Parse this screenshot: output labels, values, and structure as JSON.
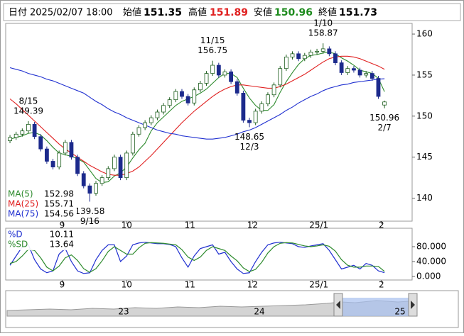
{
  "header": {
    "date_label": "日付",
    "date": "2025/02/07 18:00",
    "open_label": "始値",
    "open": "151.35",
    "high_label": "高値",
    "high": "151.89",
    "low_label": "安値",
    "low": "150.96",
    "close_label": "終値",
    "close": "151.73"
  },
  "navigator": {
    "labels": [
      "23",
      "24",
      "25"
    ]
  },
  "chart_data": [
    {
      "type": "candlestick",
      "categories": [
        null,
        null,
        null,
        "8/15",
        null,
        null,
        null,
        null,
        null,
        null,
        null,
        null,
        null,
        "9/16",
        null,
        null,
        null,
        null,
        null,
        null,
        null,
        null,
        null,
        null,
        null,
        null,
        null,
        null,
        null,
        null,
        null,
        null,
        null,
        "11/15",
        null,
        null,
        null,
        null,
        null,
        "12/3",
        null,
        null,
        null,
        null,
        null,
        null,
        null,
        null,
        null,
        null,
        null,
        "1/10",
        null,
        null,
        null,
        null,
        null,
        null,
        null,
        null,
        null,
        "2/7"
      ],
      "open": [
        147.0,
        147.4,
        147.8,
        148.2,
        149.0,
        147.5,
        146.0,
        144.5,
        143.8,
        145.5,
        146.8,
        145.0,
        143.0,
        141.5,
        140.6,
        141.8,
        142.5,
        143.6,
        145.0,
        142.5,
        145.5,
        147.8,
        148.6,
        149.2,
        149.8,
        150.5,
        151.3,
        152.0,
        153.0,
        152.4,
        151.6,
        153.2,
        154.0,
        155.2,
        156.2,
        155.0,
        155.4,
        154.2,
        152.8,
        149.5,
        149.2,
        150.6,
        151.5,
        152.6,
        153.8,
        155.8,
        157.2,
        157.6,
        157.0,
        157.4,
        157.8,
        157.9,
        158.2,
        157.6,
        156.5,
        155.3,
        155.8,
        155.6,
        155.0,
        155.2,
        154.6,
        151.35
      ],
      "high": [
        147.7,
        148.1,
        148.5,
        149.39,
        149.3,
        147.8,
        146.3,
        144.8,
        145.8,
        147.1,
        147.1,
        145.3,
        143.3,
        141.8,
        142.1,
        142.8,
        143.9,
        145.3,
        145.3,
        145.8,
        148.1,
        148.9,
        149.5,
        150.1,
        150.8,
        151.6,
        152.3,
        153.3,
        153.3,
        152.7,
        153.5,
        154.3,
        155.5,
        156.75,
        156.5,
        155.7,
        155.7,
        154.5,
        153.1,
        149.8,
        150.9,
        151.8,
        152.9,
        154.1,
        156.1,
        157.5,
        157.9,
        157.9,
        157.7,
        158.1,
        158.2,
        158.87,
        158.5,
        157.9,
        156.8,
        156.1,
        156.1,
        155.9,
        155.5,
        155.5,
        154.9,
        151.89
      ],
      "low": [
        146.7,
        147.1,
        147.5,
        147.9,
        147.2,
        145.7,
        144.2,
        143.5,
        143.5,
        145.2,
        144.7,
        142.7,
        141.2,
        139.58,
        140.3,
        141.5,
        142.2,
        143.3,
        142.2,
        142.2,
        145.2,
        147.5,
        148.3,
        148.9,
        149.5,
        150.2,
        151.0,
        151.7,
        152.1,
        151.3,
        151.3,
        152.9,
        153.7,
        154.9,
        154.7,
        154.7,
        153.9,
        152.5,
        149.2,
        148.65,
        148.9,
        150.3,
        151.2,
        152.3,
        153.5,
        155.5,
        156.9,
        156.7,
        156.7,
        157.1,
        157.5,
        157.6,
        157.3,
        156.2,
        155.0,
        155.0,
        155.3,
        154.7,
        154.7,
        154.3,
        152.1,
        150.96
      ],
      "close": [
        147.4,
        147.8,
        148.2,
        149.0,
        147.5,
        146.0,
        144.5,
        143.8,
        145.5,
        146.8,
        145.0,
        143.0,
        141.5,
        140.6,
        141.8,
        142.5,
        143.6,
        145.0,
        142.5,
        145.5,
        147.8,
        148.6,
        149.2,
        149.8,
        150.5,
        151.3,
        152.0,
        153.0,
        152.4,
        151.6,
        153.2,
        154.0,
        155.2,
        156.2,
        155.0,
        155.4,
        154.2,
        152.8,
        149.5,
        149.2,
        150.6,
        151.5,
        152.6,
        153.8,
        155.8,
        157.2,
        157.6,
        157.0,
        157.4,
        157.8,
        157.9,
        158.2,
        157.6,
        156.5,
        155.3,
        155.8,
        155.6,
        155.0,
        155.2,
        154.6,
        152.4,
        151.73
      ],
      "up_color": "#ffffff",
      "up_stroke": "#1e5e1e",
      "down_color": "#1c2a8c",
      "series": [
        {
          "name": "MA(5)",
          "color": "#2e8b2e",
          "values": [
            147.2,
            147.4,
            147.6,
            147.9,
            148.0,
            147.7,
            147.0,
            146.2,
            145.5,
            145.3,
            145.1,
            144.8,
            144.4,
            143.4,
            142.4,
            141.9,
            142.0,
            142.7,
            143.1,
            143.8,
            144.9,
            145.9,
            146.7,
            148.2,
            149.2,
            149.9,
            150.6,
            151.3,
            151.8,
            152.1,
            152.4,
            152.8,
            153.3,
            154.0,
            154.7,
            155.2,
            155.2,
            154.7,
            153.4,
            152.2,
            151.3,
            150.7,
            150.7,
            151.4,
            152.9,
            154.2,
            155.3,
            156.3,
            157.0,
            157.4,
            157.5,
            157.7,
            157.8,
            157.6,
            157.1,
            156.7,
            156.2,
            155.6,
            155.4,
            155.2,
            154.6,
            152.98
          ]
        },
        {
          "name": "MA(25)",
          "color": "#e02020",
          "values": [
            152.1,
            151.5,
            150.8,
            150.1,
            149.4,
            148.7,
            148.0,
            147.3,
            146.6,
            146.0,
            145.5,
            145.0,
            144.5,
            144.0,
            143.6,
            143.2,
            142.9,
            142.8,
            142.8,
            143.0,
            143.3,
            143.8,
            144.5,
            145.2,
            146.0,
            146.8,
            147.6,
            148.4,
            149.2,
            149.9,
            150.6,
            151.2,
            151.8,
            152.4,
            152.9,
            153.3,
            153.6,
            153.8,
            153.8,
            153.7,
            153.6,
            153.5,
            153.4,
            153.4,
            153.6,
            153.9,
            154.3,
            154.7,
            155.1,
            155.6,
            156.1,
            156.6,
            157.0,
            157.2,
            157.3,
            157.3,
            157.2,
            157.0,
            156.7,
            156.4,
            156.1,
            155.71
          ]
        },
        {
          "name": "MA(75)",
          "color": "#2030d0",
          "values": [
            155.9,
            155.7,
            155.5,
            155.2,
            155.0,
            154.8,
            154.5,
            154.3,
            154.0,
            153.7,
            153.4,
            153.1,
            152.8,
            152.3,
            151.8,
            151.4,
            150.9,
            150.5,
            150.2,
            149.8,
            149.5,
            149.2,
            148.9,
            148.6,
            148.3,
            148.1,
            147.9,
            147.8,
            147.6,
            147.5,
            147.4,
            147.3,
            147.2,
            147.2,
            147.3,
            147.4,
            147.6,
            147.8,
            148.1,
            148.3,
            148.6,
            149.0,
            149.4,
            149.8,
            150.2,
            150.7,
            151.1,
            151.6,
            152.0,
            152.4,
            152.7,
            153.1,
            153.4,
            153.6,
            153.8,
            153.9,
            154.1,
            154.2,
            154.3,
            154.4,
            154.5,
            154.56
          ]
        }
      ],
      "xlim": [
        -0.7,
        65.5
      ],
      "xticks": [
        {
          "value": 8.5,
          "label": "9"
        },
        {
          "value": 19,
          "label": "10"
        },
        {
          "value": 29.3,
          "label": "11"
        },
        {
          "value": 39.5,
          "label": "12"
        },
        {
          "value": 50.3,
          "label": "25/1"
        },
        {
          "value": 60.5,
          "label": "2"
        }
      ],
      "ylim": [
        137.2,
        161.3
      ],
      "yticks": [
        140,
        145,
        150,
        155,
        160
      ]
    },
    {
      "type": "line",
      "categories": [
        null,
        null,
        null,
        null,
        null,
        null,
        null,
        null,
        null,
        null,
        null,
        null,
        null,
        null,
        null,
        null,
        null,
        null,
        null,
        null,
        null,
        null,
        null,
        null,
        null,
        null,
        null,
        null,
        null,
        null,
        null,
        null,
        null,
        null,
        null,
        null,
        null,
        null,
        null,
        null,
        null,
        null,
        null,
        null,
        null,
        null,
        null,
        null,
        null,
        null,
        null,
        null,
        null,
        null,
        null,
        null,
        null,
        null,
        null,
        null,
        null,
        null
      ],
      "series": [
        {
          "name": "%D",
          "color": "#2030d0",
          "values": [
            30,
            55,
            80,
            85,
            45,
            20,
            10,
            15,
            60,
            75,
            40,
            15,
            8,
            10,
            45,
            70,
            85,
            85,
            40,
            55,
            85,
            90,
            92,
            90,
            88,
            88,
            86,
            80,
            50,
            25,
            55,
            75,
            80,
            85,
            60,
            65,
            40,
            20,
            8,
            10,
            40,
            65,
            85,
            90,
            92,
            90,
            88,
            80,
            78,
            82,
            85,
            88,
            70,
            45,
            20,
            25,
            30,
            20,
            35,
            30,
            15,
            10.11
          ]
        },
        {
          "name": "%SD",
          "color": "#2e8b2e",
          "values": [
            35,
            40,
            55,
            73,
            70,
            50,
            25,
            15,
            28,
            50,
            58,
            43,
            21,
            11,
            21,
            42,
            67,
            80,
            70,
            60,
            60,
            77,
            89,
            91,
            90,
            89,
            87,
            85,
            72,
            52,
            43,
            52,
            70,
            80,
            75,
            70,
            55,
            42,
            23,
            13,
            19,
            38,
            63,
            80,
            89,
            91,
            90,
            86,
            82,
            80,
            82,
            85,
            81,
            68,
            45,
            30,
            25,
            25,
            28,
            28,
            27,
            13.64
          ]
        }
      ],
      "xlim": [
        -0.7,
        65.5
      ],
      "xticks": [
        {
          "value": 8.5,
          "label": "9"
        },
        {
          "value": 19,
          "label": "10"
        },
        {
          "value": 29.3,
          "label": "11"
        },
        {
          "value": 39.5,
          "label": "12"
        },
        {
          "value": 50.3,
          "label": "25/1"
        },
        {
          "value": 60.5,
          "label": "2"
        }
      ],
      "ylim": [
        -9.5,
        129.5
      ],
      "yticks": [
        {
          "value": 0,
          "label": "0.000"
        },
        {
          "value": 40,
          "label": "40.000"
        },
        {
          "value": 80,
          "label": "80.000"
        }
      ]
    }
  ]
}
